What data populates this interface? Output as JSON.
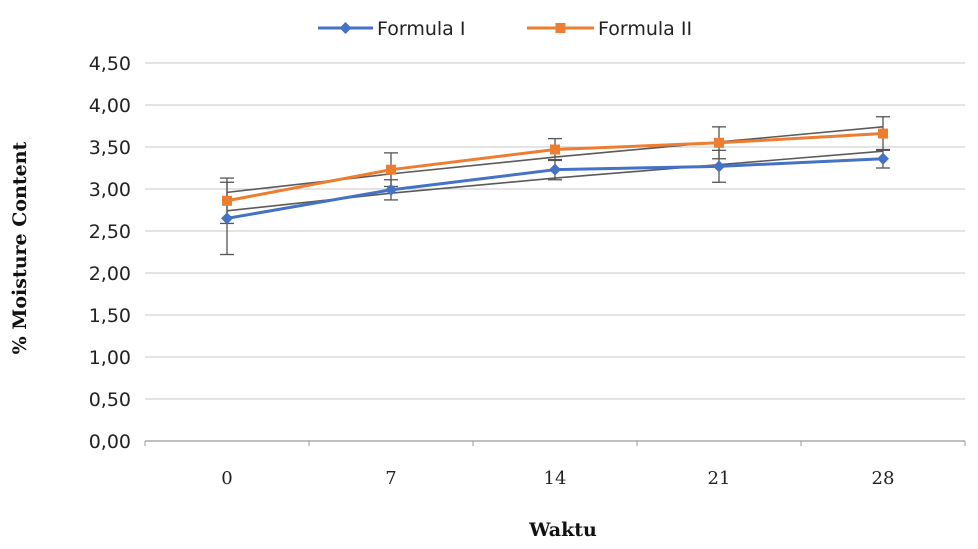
{
  "chart_data": {
    "type": "line",
    "categories": [
      "0",
      "7",
      "14",
      "21",
      "28"
    ],
    "x": [
      0,
      7,
      14,
      21,
      28
    ],
    "series": [
      {
        "name": "Formula I",
        "color": "#4472C4",
        "marker": "diamond",
        "values": [
          2.65,
          2.99,
          3.23,
          3.27,
          3.36
        ],
        "error": [
          0.43,
          0.12,
          0.12,
          0.19,
          0.11
        ],
        "trendline": [
          2.74,
          2.95,
          3.13,
          3.29,
          3.45
        ]
      },
      {
        "name": "Formula II",
        "color": "#ED7D31",
        "marker": "square",
        "values": [
          2.86,
          3.23,
          3.47,
          3.55,
          3.66
        ],
        "error": [
          0.27,
          0.2,
          0.13,
          0.19,
          0.2
        ],
        "trendline": [
          2.96,
          3.18,
          3.38,
          3.56,
          3.74
        ]
      }
    ],
    "ylim": [
      0,
      4.5
    ],
    "yticks": [
      "0,00",
      "0,50",
      "1,00",
      "1,50",
      "2,00",
      "2,50",
      "3,00",
      "3,50",
      "4,00",
      "4,50"
    ],
    "xlabel": "Waktu",
    "ylabel": "% Moisture Content",
    "title": "",
    "grid": true,
    "legend": "top-center",
    "trendline_color": "#5a5a5a",
    "errorbar_color": "#555555",
    "gridline_color": "#c8c8c8"
  }
}
